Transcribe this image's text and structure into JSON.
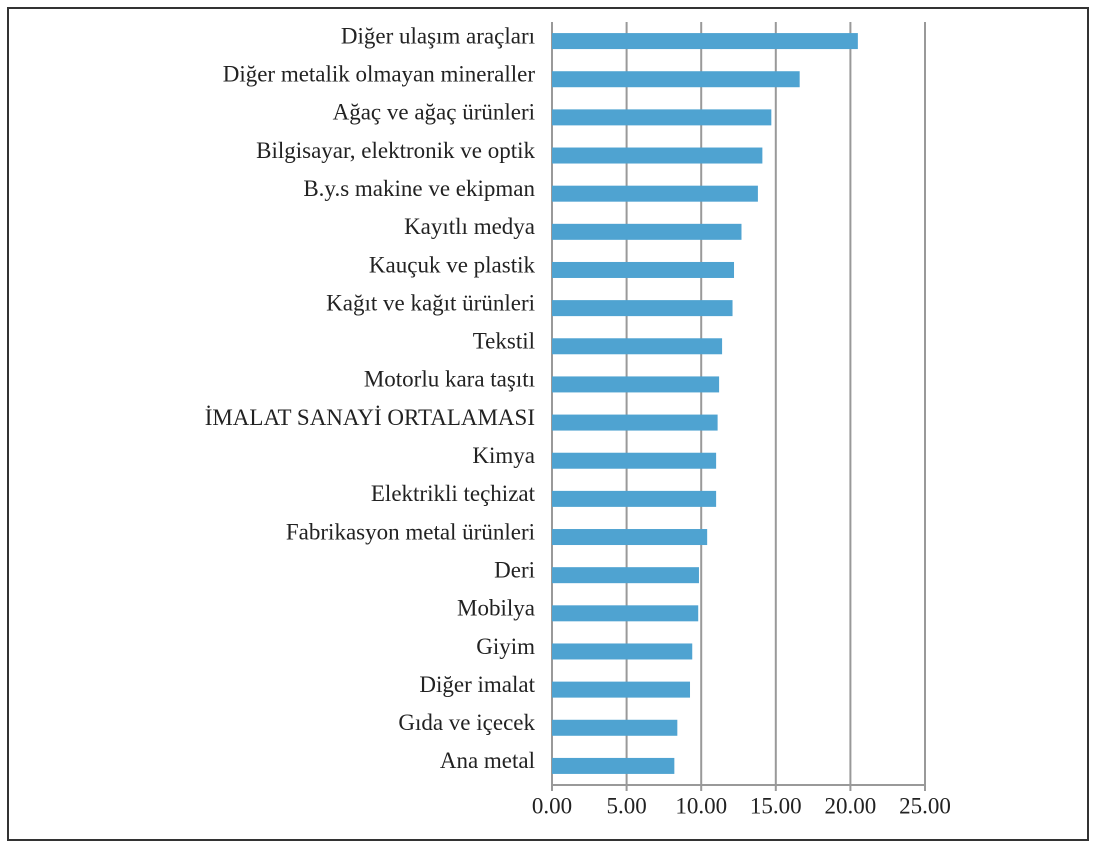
{
  "chart_data": {
    "type": "bar",
    "orientation": "horizontal",
    "categories": [
      "Diğer ulaşım araçları",
      "Diğer metalik olmayan mineraller",
      "Ağaç ve ağaç ürünleri",
      "Bilgisayar, elektronik ve optik",
      "B.y.s makine ve ekipman",
      "Kayıtlı medya",
      "Kauçuk ve plastik",
      "Kağıt ve kağıt ürünleri",
      "Tekstil",
      "Motorlu kara taşıtı",
      "İMALAT SANAYİ ORTALAMASI",
      "Kimya",
      "Elektrikli teçhizat",
      "Fabrikasyon metal ürünleri",
      "Deri",
      "Mobilya",
      "Giyim",
      "Diğer imalat",
      "Gıda ve içecek",
      "Ana metal"
    ],
    "values": [
      20.5,
      16.6,
      14.7,
      14.1,
      13.8,
      12.7,
      12.2,
      12.1,
      11.4,
      11.2,
      11.1,
      11.0,
      11.0,
      10.4,
      9.85,
      9.8,
      9.4,
      9.25,
      8.4,
      8.2
    ],
    "color": "#4fa3d1",
    "xlim": [
      0,
      25
    ],
    "xticks": [
      {
        "value": 0,
        "label": "0.00"
      },
      {
        "value": 5,
        "label": "5.00"
      },
      {
        "value": 10,
        "label": "10.00"
      },
      {
        "value": 15,
        "label": "15.00"
      },
      {
        "value": 20,
        "label": "20.00"
      },
      {
        "value": 25,
        "label": "25.00"
      }
    ],
    "grid": true
  }
}
